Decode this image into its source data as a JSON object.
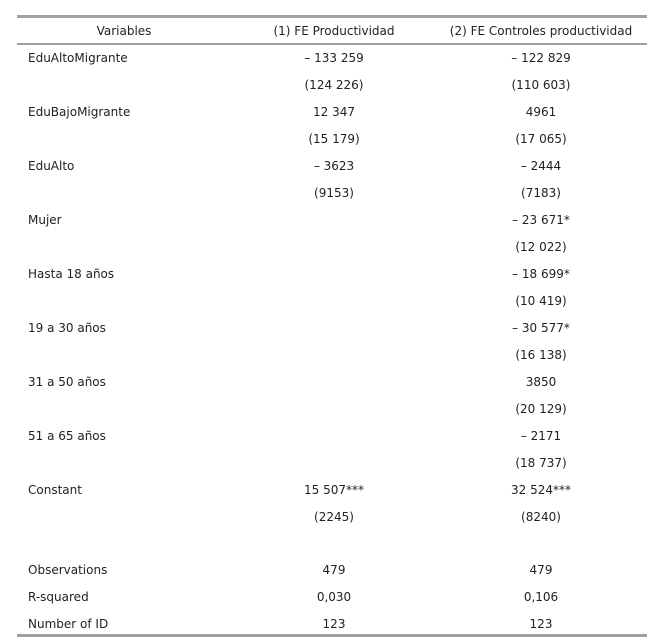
{
  "table": {
    "header": [
      "Variables",
      "(1) FE Productividad",
      "(2) FE Controles productividad"
    ],
    "rows": [
      [
        "EduAltoMigrante",
        "– 133 259",
        "– 122 829"
      ],
      [
        null,
        "(124 226)",
        "(110 603)"
      ],
      [
        "EduBajoMigrante",
        "12 347",
        "4961"
      ],
      [
        null,
        "(15 179)",
        "(17 065)"
      ],
      [
        "EduAlto",
        "– 3623",
        "– 2444"
      ],
      [
        null,
        "(9153)",
        "(7183)"
      ],
      [
        "Mujer",
        null,
        "– 23 671*"
      ],
      [
        null,
        null,
        "(12 022)"
      ],
      [
        "Hasta 18 años",
        null,
        "– 18 699*"
      ],
      [
        null,
        null,
        "(10 419)"
      ],
      [
        "19 a 30 años",
        null,
        "– 30 577*"
      ],
      [
        null,
        null,
        "(16 138)"
      ],
      [
        "31 a 50 años",
        null,
        "3850"
      ],
      [
        null,
        null,
        "(20 129)"
      ],
      [
        "51 a 65 años",
        null,
        "– 2171"
      ],
      [
        null,
        null,
        "(18 737)"
      ],
      [
        "Constant",
        "15 507***",
        "32 524***"
      ],
      [
        null,
        "(2245)",
        "(8240)"
      ]
    ],
    "stats": [
      [
        "Observations",
        "479",
        "479"
      ],
      [
        "R-squared",
        "0,030",
        "0,106"
      ],
      [
        "Number of ID",
        "123",
        "123"
      ]
    ]
  }
}
